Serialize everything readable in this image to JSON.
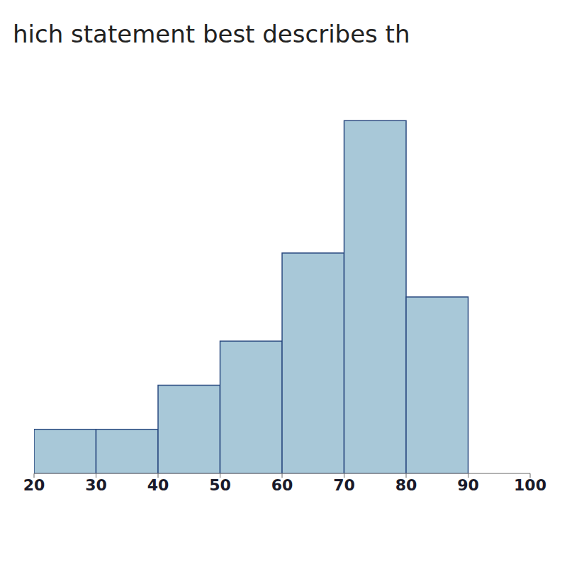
{
  "chart_data": {
    "type": "histogram",
    "title": "hich statement best describes th",
    "bins": [
      20,
      30,
      40,
      50,
      60,
      70,
      80,
      90,
      100
    ],
    "values": [
      1,
      1,
      2,
      3,
      5,
      8,
      4,
      0
    ],
    "color": "#a8c8d8",
    "xlim": [
      20,
      100
    ],
    "ylim": [
      0,
      9
    ],
    "xticks": [
      20,
      30,
      40,
      50,
      60,
      70,
      80,
      90,
      100
    ],
    "tick_labels": "x"
  }
}
